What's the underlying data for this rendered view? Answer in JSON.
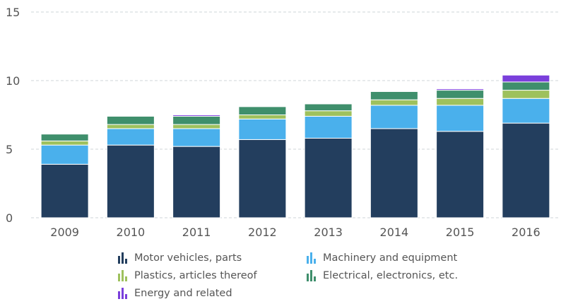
{
  "chart_data": {
    "type": "bar",
    "stacked": true,
    "categories": [
      "2009",
      "2010",
      "2011",
      "2012",
      "2013",
      "2014",
      "2015",
      "2016"
    ],
    "ylim": [
      0,
      15
    ],
    "yticks": [
      "0",
      "5",
      "10",
      "15"
    ],
    "grid": true,
    "legend_position": "bottom",
    "series": [
      {
        "name": "Motor vehicles, parts",
        "color": "#233e5e",
        "values": [
          3.9,
          5.3,
          5.2,
          5.7,
          5.8,
          6.5,
          6.3,
          6.9
        ]
      },
      {
        "name": "Machinery and equipment",
        "color": "#4ab0ec",
        "values": [
          1.4,
          1.2,
          1.3,
          1.5,
          1.6,
          1.7,
          1.9,
          1.8
        ]
      },
      {
        "name": "Plastics, articles thereof",
        "color": "#9ec15d",
        "values": [
          0.3,
          0.3,
          0.3,
          0.3,
          0.4,
          0.4,
          0.5,
          0.6
        ]
      },
      {
        "name": "Electrical, electronics, etc.",
        "color": "#3f8f6c",
        "values": [
          0.5,
          0.6,
          0.6,
          0.6,
          0.5,
          0.6,
          0.6,
          0.6
        ]
      },
      {
        "name": "Energy and related",
        "color": "#7a3fdb",
        "values": [
          0.0,
          0.0,
          0.1,
          0.0,
          0.0,
          0.0,
          0.1,
          0.5
        ]
      }
    ]
  }
}
